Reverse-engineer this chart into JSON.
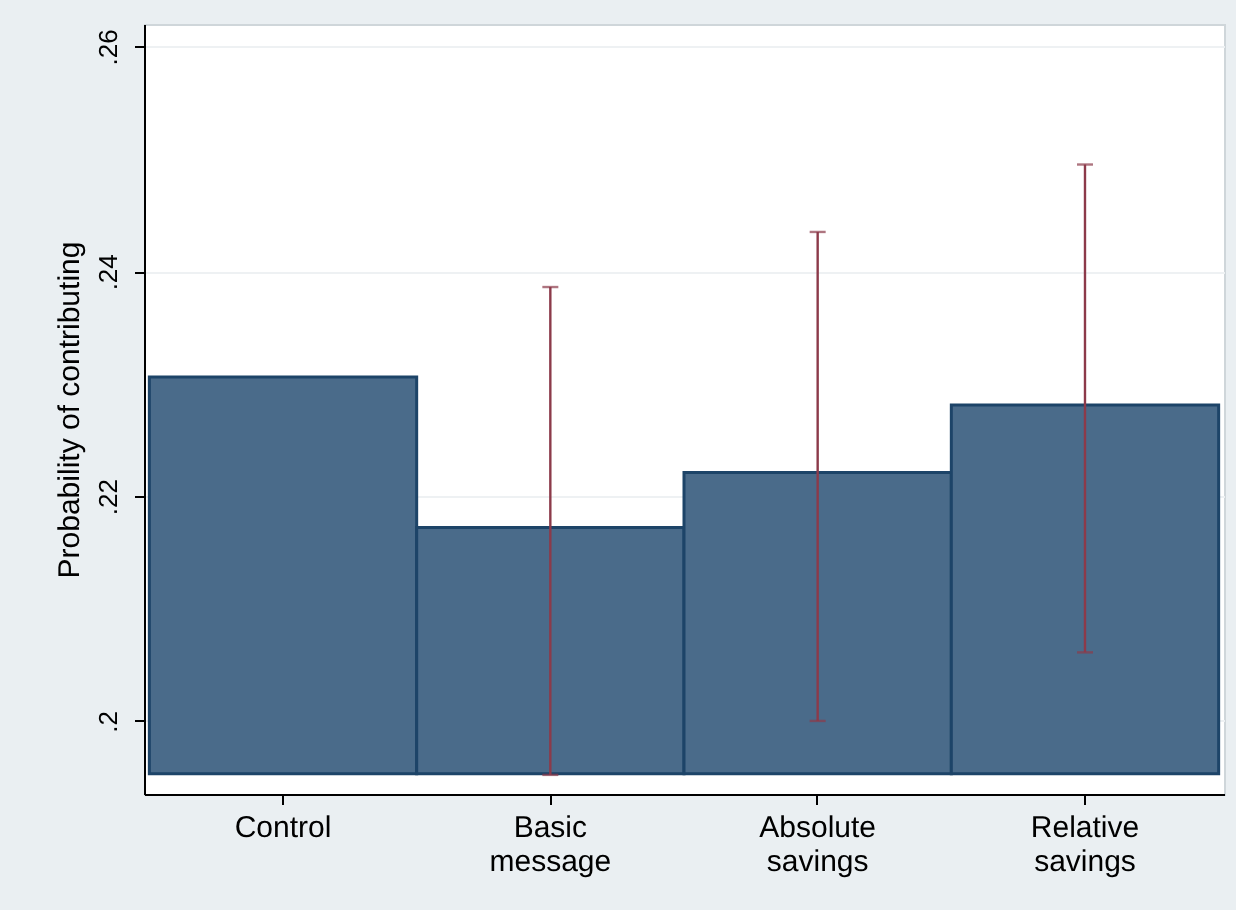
{
  "chart_data": {
    "type": "bar",
    "ylabel": "Probability of contributing",
    "categories": [
      "Control",
      "Basic message",
      "Absolute savings",
      "Relative savings"
    ],
    "values": [
      0.0353,
      0.0219,
      0.0268,
      0.0328
    ],
    "base": [
      0.1953,
      0.1953,
      0.1953,
      0.1953
    ],
    "errors": [
      null,
      [
        0.1952,
        0.2386
      ],
      [
        0.2,
        0.2435
      ],
      [
        0.2061,
        0.2495
      ]
    ],
    "color": "#4a6b8a",
    "ylim": [
      0.1935,
      0.262
    ],
    "yticks": [
      {
        "value": 0.2,
        "label": ".2"
      },
      {
        "value": 0.22,
        "label": ".22"
      },
      {
        "value": 0.24,
        "label": ".24"
      },
      {
        "value": 0.26,
        "label": ".26"
      }
    ],
    "grid": "y"
  }
}
